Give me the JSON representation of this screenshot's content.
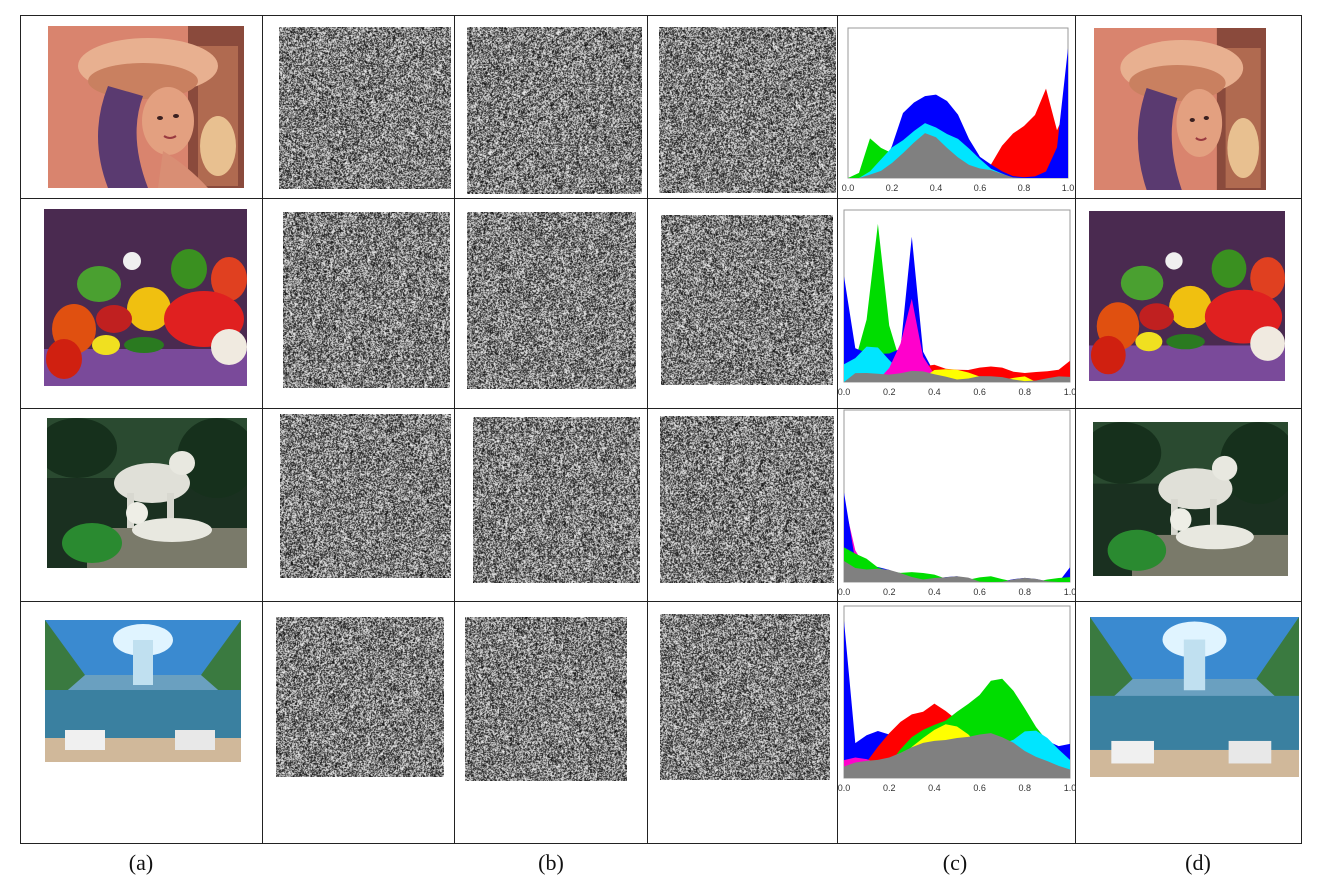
{
  "captions": {
    "a": "(a)",
    "b": "(b)",
    "c": "(c)",
    "d": "(d)"
  },
  "images": {
    "lena": "lena-photo",
    "peppers": "peppers-photo",
    "tigers": "white-tigers-photo",
    "room": "3d-room-mural-photo"
  },
  "colors": {
    "red": "#ff0000",
    "green": "#00dd00",
    "blue": "#0000ff",
    "cyan": "#00e5ff",
    "magenta": "#ff00cc",
    "yellow": "#ffff00",
    "gray": "#808080"
  },
  "chart_data": [
    {
      "type": "area",
      "title": "",
      "x": [
        0.0,
        0.05,
        0.1,
        0.15,
        0.2,
        0.25,
        0.3,
        0.35,
        0.4,
        0.45,
        0.5,
        0.55,
        0.6,
        0.65,
        0.7,
        0.75,
        0.8,
        0.85,
        0.9,
        0.95,
        1.0
      ],
      "xticks": [
        "0.0",
        "0.2",
        "0.4",
        "0.6",
        "0.8",
        "1.0"
      ],
      "series": [
        {
          "color": "red",
          "values": [
            0,
            0,
            0,
            0,
            0,
            0,
            0,
            0,
            0,
            0,
            0,
            0,
            0.02,
            0.08,
            0.22,
            0.32,
            0.38,
            0.45,
            0.62,
            0.32,
            0.5
          ]
        },
        {
          "color": "green",
          "values": [
            0,
            0.05,
            0.28,
            0.2,
            0.16,
            0.24,
            0.32,
            0.36,
            0.38,
            0.35,
            0.3,
            0.22,
            0.12,
            0.06,
            0.02,
            0.0,
            0.0,
            0.0,
            0,
            0,
            0.0
          ]
        },
        {
          "color": "blue",
          "values": [
            0,
            0.0,
            0.0,
            0.06,
            0.24,
            0.46,
            0.52,
            0.56,
            0.58,
            0.55,
            0.46,
            0.28,
            0.14,
            0.08,
            0.04,
            0.02,
            0.02,
            0.02,
            0.04,
            0.2,
            0.9
          ]
        },
        {
          "color": "cyan",
          "values": [
            0,
            0,
            0.05,
            0.12,
            0.2,
            0.26,
            0.34,
            0.4,
            0.36,
            0.3,
            0.26,
            0.2,
            0.14,
            0.08,
            0.04,
            0,
            0,
            0,
            0,
            0,
            0
          ]
        },
        {
          "color": "gray",
          "values": [
            0,
            0,
            0.02,
            0.06,
            0.12,
            0.18,
            0.24,
            0.3,
            0.28,
            0.22,
            0.16,
            0.1,
            0.06,
            0.04,
            0.02,
            0.01,
            0.01,
            0,
            0,
            0,
            0
          ]
        }
      ]
    },
    {
      "type": "area",
      "title": "",
      "x": [
        0.0,
        0.05,
        0.1,
        0.15,
        0.2,
        0.25,
        0.3,
        0.35,
        0.4,
        0.45,
        0.5,
        0.55,
        0.6,
        0.65,
        0.7,
        0.75,
        0.8,
        0.85,
        0.9,
        0.95,
        1.0
      ],
      "xticks": [
        "0.0",
        "0.2",
        "0.4",
        "0.6",
        "0.8",
        "1.0"
      ],
      "series": [
        {
          "color": "green",
          "values": [
            0.1,
            0.12,
            0.38,
            0.98,
            0.36,
            0.12,
            0.06,
            0.04,
            0.04,
            0.04,
            0.03,
            0.03,
            0.03,
            0.02,
            0.02,
            0.02,
            0.02,
            0.02,
            0.02,
            0.02,
            0.06
          ]
        },
        {
          "color": "blue",
          "values": [
            0.66,
            0.22,
            0.18,
            0.16,
            0.16,
            0.2,
            0.9,
            0.2,
            0.06,
            0.04,
            0.04,
            0.03,
            0.03,
            0.02,
            0.02,
            0.02,
            0.02,
            0.02,
            0.02,
            0.02,
            0.05
          ]
        },
        {
          "color": "red",
          "values": [
            0,
            0,
            0,
            0,
            0,
            0.02,
            0.04,
            0.08,
            0.1,
            0.09,
            0.09,
            0.08,
            0.08,
            0.08,
            0.08,
            0.07,
            0.07,
            0.07,
            0.06,
            0.06,
            0.12
          ]
        },
        {
          "color": "cyan",
          "values": [
            0.12,
            0.16,
            0.22,
            0.2,
            0.12,
            0.06,
            0.03,
            0.02,
            0,
            0,
            0,
            0,
            0,
            0,
            0,
            0,
            0,
            0,
            0,
            0,
            0
          ]
        },
        {
          "color": "magenta",
          "values": [
            0,
            0,
            0,
            0.02,
            0.1,
            0.24,
            0.5,
            0.14,
            0.04,
            0,
            0,
            0,
            0,
            0,
            0,
            0,
            0,
            0,
            0,
            0,
            0
          ]
        },
        {
          "color": "yellow",
          "values": [
            0,
            0,
            0,
            0,
            0,
            0,
            0,
            0.04,
            0.08,
            0.07,
            0.06,
            0.05,
            0.04,
            0.03,
            0.02,
            0.02,
            0.02,
            0,
            0,
            0,
            0
          ]
        },
        {
          "color": "gray",
          "values": [
            0,
            0.04,
            0.05,
            0.06,
            0.06,
            0.06,
            0.06,
            0.05,
            0.04,
            0.04,
            0.03,
            0.03,
            0.03,
            0.02,
            0.02,
            0.02,
            0.02,
            0.02,
            0.02,
            0.02,
            0.02
          ]
        }
      ]
    },
    {
      "type": "area",
      "title": "",
      "x": [
        0.0,
        0.05,
        0.1,
        0.15,
        0.2,
        0.25,
        0.3,
        0.35,
        0.4,
        0.45,
        0.5,
        0.55,
        0.6,
        0.65,
        0.7,
        0.75,
        0.8,
        0.85,
        0.9,
        0.95,
        1.0
      ],
      "xticks": [
        "0.0",
        "0.2",
        "0.4",
        "0.6",
        "0.8",
        "1.0"
      ],
      "series": [
        {
          "color": "magenta",
          "values": [
            0.48,
            0.18,
            0.08,
            0.04,
            0.02,
            0.02,
            0.01,
            0.01,
            0.01,
            0.01,
            0,
            0,
            0,
            0,
            0,
            0,
            0,
            0,
            0,
            0,
            0
          ]
        },
        {
          "color": "blue",
          "values": [
            0.56,
            0.14,
            0.1,
            0.08,
            0.06,
            0.04,
            0.03,
            0.03,
            0.02,
            0.02,
            0.02,
            0.01,
            0.01,
            0.01,
            0.01,
            0.01,
            0.01,
            0.01,
            0.01,
            0.01,
            0.1
          ]
        },
        {
          "color": "green",
          "values": [
            0.2,
            0.16,
            0.14,
            0.1,
            0.08,
            0.06,
            0.05,
            0.04,
            0.04,
            0.03,
            0.03,
            0.02,
            0.02,
            0.02,
            0.01,
            0.01,
            0.01,
            0.01,
            0.01,
            0.01,
            0.02
          ]
        },
        {
          "color": "gray",
          "values": [
            0.14,
            0.1,
            0.08,
            0.07,
            0.06,
            0.05,
            0.04,
            0.03,
            0.03,
            0.02,
            0.02,
            0.02,
            0.01,
            0.01,
            0.01,
            0.01,
            0.01,
            0.01,
            0.01,
            0.01,
            0.01
          ]
        }
      ]
    },
    {
      "type": "area",
      "title": "",
      "x": [
        0.0,
        0.05,
        0.1,
        0.15,
        0.2,
        0.25,
        0.3,
        0.35,
        0.4,
        0.45,
        0.5,
        0.55,
        0.6,
        0.65,
        0.7,
        0.75,
        0.8,
        0.85,
        0.9,
        0.95,
        1.0
      ],
      "xticks": [
        "0.0",
        "0.2",
        "0.4",
        "0.6",
        "0.8",
        "1.0"
      ],
      "series": [
        {
          "color": "blue",
          "values": [
            0.95,
            0.2,
            0.26,
            0.3,
            0.28,
            0.24,
            0.2,
            0.18,
            0.16,
            0.16,
            0.16,
            0.18,
            0.2,
            0.22,
            0.26,
            0.3,
            0.32,
            0.3,
            0.22,
            0.18,
            0.2
          ]
        },
        {
          "color": "red",
          "values": [
            0,
            0.04,
            0.1,
            0.18,
            0.26,
            0.34,
            0.4,
            0.42,
            0.46,
            0.4,
            0.34,
            0.3,
            0.26,
            0.2,
            0.16,
            0.1,
            0.06,
            0.02,
            0,
            0,
            0
          ]
        },
        {
          "color": "green",
          "values": [
            0,
            0,
            0,
            0.04,
            0.1,
            0.18,
            0.24,
            0.28,
            0.32,
            0.36,
            0.42,
            0.46,
            0.5,
            0.58,
            0.6,
            0.54,
            0.44,
            0.32,
            0.22,
            0.14,
            0.06
          ]
        },
        {
          "color": "yellow",
          "values": [
            0,
            0,
            0,
            0,
            0.06,
            0.12,
            0.2,
            0.26,
            0.3,
            0.32,
            0.3,
            0.26,
            0.2,
            0.14,
            0.08,
            0.04,
            0.02,
            0,
            0,
            0,
            0
          ]
        },
        {
          "color": "cyan",
          "values": [
            0,
            0,
            0,
            0,
            0,
            0,
            0,
            0,
            0,
            0,
            0,
            0.04,
            0.1,
            0.14,
            0.2,
            0.24,
            0.3,
            0.3,
            0.24,
            0.16,
            0.1
          ]
        },
        {
          "color": "magenta",
          "values": [
            0.12,
            0.14,
            0.12,
            0.08,
            0.06,
            0.04,
            0.02,
            0,
            0,
            0,
            0,
            0,
            0,
            0,
            0,
            0,
            0,
            0,
            0,
            0,
            0
          ]
        },
        {
          "color": "gray",
          "values": [
            0.06,
            0.08,
            0.1,
            0.12,
            0.14,
            0.16,
            0.18,
            0.2,
            0.22,
            0.24,
            0.26,
            0.26,
            0.26,
            0.26,
            0.24,
            0.22,
            0.18,
            0.14,
            0.1,
            0.06,
            0.04
          ]
        }
      ]
    }
  ]
}
